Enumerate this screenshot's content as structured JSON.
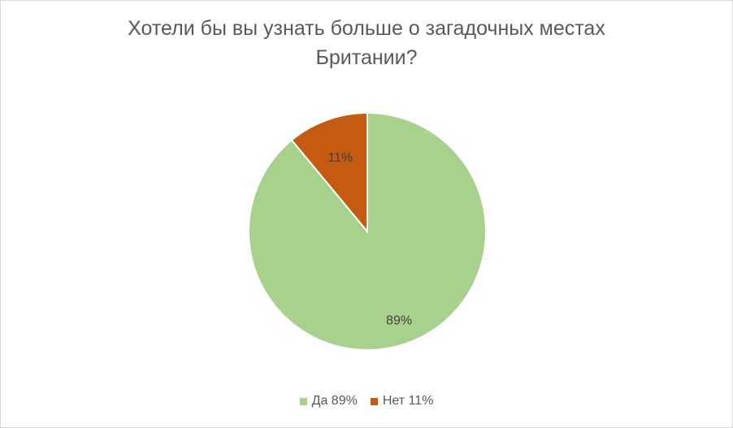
{
  "chart_data": {
    "type": "pie",
    "title_lines": [
      "Хотели бы вы узнать больше о загадочных местах",
      "Британии?"
    ],
    "categories": [
      "Да 89%",
      "Нет 11%"
    ],
    "values": [
      89,
      11
    ],
    "data_labels": [
      "89%",
      "11%"
    ],
    "colors": [
      "#a9d18e",
      "#c55a11"
    ],
    "legend_position": "bottom"
  }
}
